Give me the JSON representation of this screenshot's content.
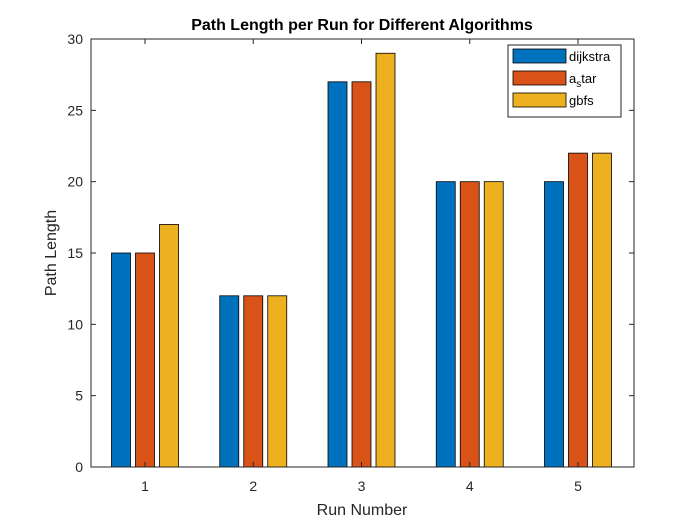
{
  "chart_data": {
    "type": "bar",
    "title": "Path Length per Run for Different Algorithms",
    "xlabel": "Run Number",
    "ylabel": "Path Length",
    "categories": [
      "1",
      "2",
      "3",
      "4",
      "5"
    ],
    "ylim": [
      0,
      30
    ],
    "yticks": [
      "0",
      "5",
      "10",
      "15",
      "20",
      "25",
      "30"
    ],
    "grid": false,
    "legend_position": "top-right",
    "series": [
      {
        "name": "dijkstra",
        "legend_main": "dijkstra",
        "legend_sub": "",
        "legend_rest": "",
        "color": "#0072BD",
        "values": [
          15,
          12,
          27,
          20,
          20
        ]
      },
      {
        "name": "a_star",
        "legend_main": "a",
        "legend_sub": "s",
        "legend_rest": "tar",
        "color": "#D95319",
        "values": [
          15,
          12,
          27,
          20,
          22
        ]
      },
      {
        "name": "gbfs",
        "legend_main": "gbfs",
        "legend_sub": "",
        "legend_rest": "",
        "color": "#EDB120",
        "values": [
          17,
          12,
          29,
          20,
          22
        ]
      }
    ]
  }
}
